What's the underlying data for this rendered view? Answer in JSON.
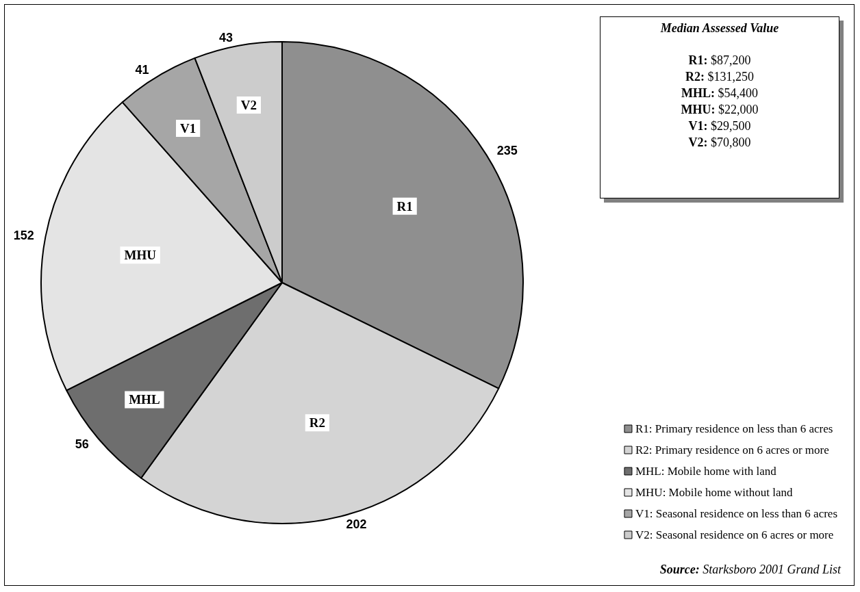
{
  "chart_data": [
    {
      "type": "pie",
      "categories": [
        "R1: Primary residence on less than 6 acres",
        "R2: Primary residence on 6 acres or more",
        "MHL: Mobile home with land",
        "MHU: Mobile home without land",
        "V1: Seasonal residence on less than 6 acres",
        "V2: Seasonal residence on 6 acres or more"
      ],
      "values": [
        235,
        202,
        56,
        152,
        41,
        43
      ],
      "colors": [
        "#8f8f8f",
        "#d4d4d4",
        "#6e6e6e",
        "#e4e4e4",
        "#a6a6a6",
        "#cccccc"
      ],
      "data_labels": true,
      "legend": "bottom right",
      "annotations": [
        {
          "text": "R1",
          "x": "R1: Primary residence on less than 6 acres"
        },
        {
          "text": "R2",
          "x": "R2: Primary residence on 6 acres or more"
        },
        {
          "text": "MHL",
          "x": "MHL: Mobile home with land"
        },
        {
          "text": "MHU",
          "x": "MHU: Mobile home without land"
        },
        {
          "text": "V1",
          "x": "V1: Seasonal residence on less than 6 acres"
        },
        {
          "text": "V2",
          "x": "V2: Seasonal residence on 6 acres or more"
        },
        "Source:  Starksboro 2001 Grand List"
      ]
    },
    {
      "type": "other",
      "title": "Median Assessed Value",
      "annotations": [
        "R1: $87,200",
        "R2: $131,250",
        "MHL: $54,400",
        "MHU: $22,000",
        "V1: $29,500",
        "V2: $70,800"
      ]
    }
  ]
}
